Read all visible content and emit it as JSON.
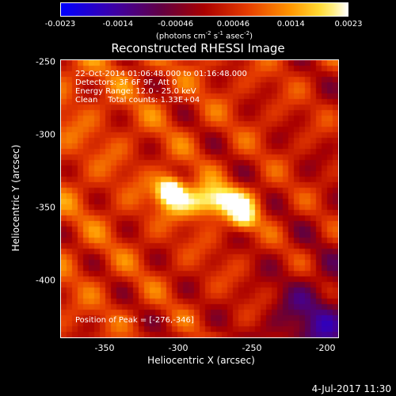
{
  "colorbar": {
    "ticks": [
      "-0.0023",
      "-0.0014",
      "-0.00046",
      "0.00046",
      "0.0014",
      "0.0023"
    ],
    "units_prefix": "(photons cm",
    "units_exp1": "-2",
    "units_mid1": " s",
    "units_exp2": "-1",
    "units_mid2": " asec",
    "units_exp3": "-2",
    "units_suffix": ")"
  },
  "title": "Reconstructed RHESSI Image",
  "info": {
    "time": "22-Oct-2014 01:06:48.000 to 01:16:48.000",
    "detectors": "Detectors: 3F 6F 9F, Att 0",
    "energy": "Energy Range: 12.0 - 25.0 keV",
    "clean": "Clean    Total counts: 1.33E+04",
    "peak": "Position of Peak = [-276,-346]"
  },
  "footer": {
    "timestamp": "4-Jul-2017 11:30"
  },
  "chart_data": {
    "type": "heatmap",
    "title": "Reconstructed RHESSI Image",
    "xlabel": "Heliocentric X (arcsec)",
    "ylabel": "Heliocentric Y (arcsec)",
    "xlim": [
      -380,
      -190
    ],
    "ylim": [
      -440,
      -248
    ],
    "x_ticks": [
      "-350",
      "-300",
      "-250",
      "-200"
    ],
    "y_ticks": [
      "-250",
      "-300",
      "-350",
      "-400"
    ],
    "x_tick_values": [
      -350,
      -300,
      -250,
      -200
    ],
    "y_tick_values": [
      -250,
      -300,
      -350,
      -400
    ],
    "colorbar_range": [
      -0.0023,
      0.0023
    ],
    "peak": [
      -276,
      -346
    ],
    "colormap": "hot",
    "legend": "colorbar top"
  }
}
